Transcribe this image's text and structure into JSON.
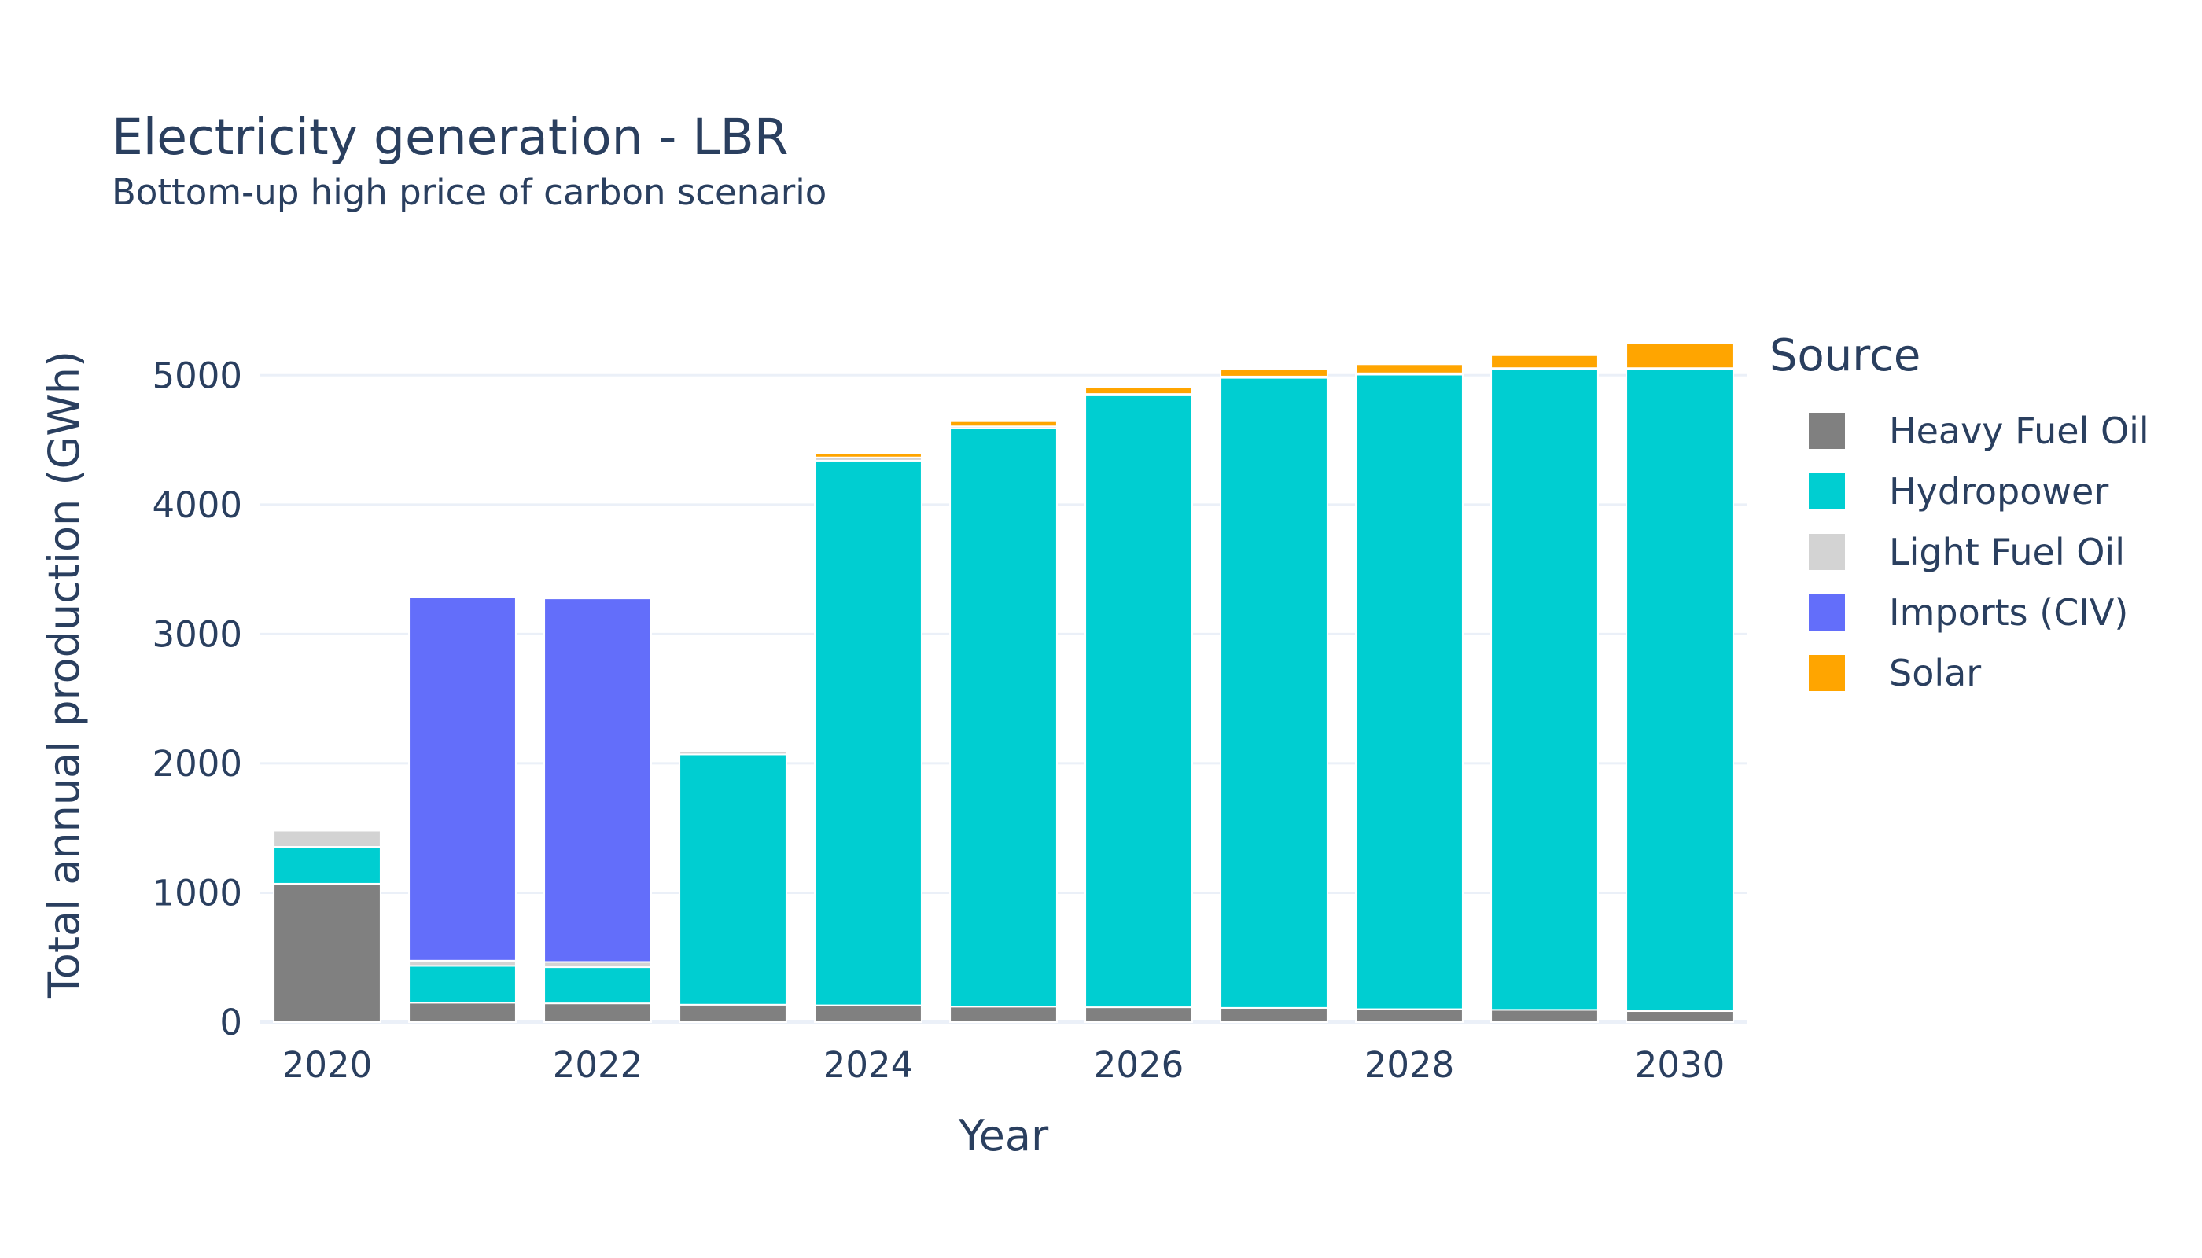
{
  "chart_data": {
    "type": "bar",
    "stacked": true,
    "title": "Electricity generation - LBR",
    "subtitle": "Bottom-up high price of carbon scenario",
    "xlabel": "Year",
    "ylabel": "Total annual production (GWh)",
    "x": [
      2020,
      2021,
      2022,
      2023,
      2024,
      2025,
      2026,
      2027,
      2028,
      2029,
      2030
    ],
    "x_ticks": [
      "2020",
      "2022",
      "2024",
      "2026",
      "2028",
      "2030"
    ],
    "y_ticks": [
      "0",
      "1000",
      "2000",
      "3000",
      "4000",
      "5000"
    ],
    "ylim": [
      0,
      5500
    ],
    "grid": true,
    "legend_title": "Source",
    "legend_position": "right",
    "series": [
      {
        "name": "Heavy Fuel Oil",
        "color": "#808080",
        "values": [
          1070,
          150,
          145,
          135,
          130,
          120,
          115,
          110,
          100,
          95,
          85
        ]
      },
      {
        "name": "Hydropower",
        "color": "#00CED1",
        "values": [
          285,
          285,
          280,
          1935,
          4210,
          4470,
          4730,
          4870,
          4905,
          4955,
          4965
        ]
      },
      {
        "name": "Light Fuel Oil",
        "color": "#D3D3D3",
        "values": [
          125,
          40,
          40,
          25,
          25,
          15,
          10,
          10,
          10,
          5,
          5
        ]
      },
      {
        "name": "Imports (CIV)",
        "color": "#636EFA",
        "values": [
          0,
          2810,
          2810,
          0,
          0,
          0,
          0,
          0,
          0,
          0,
          0
        ]
      },
      {
        "name": "Solar",
        "color": "#FFA500",
        "values": [
          0,
          0,
          0,
          0,
          30,
          40,
          50,
          60,
          70,
          100,
          190
        ]
      }
    ]
  }
}
